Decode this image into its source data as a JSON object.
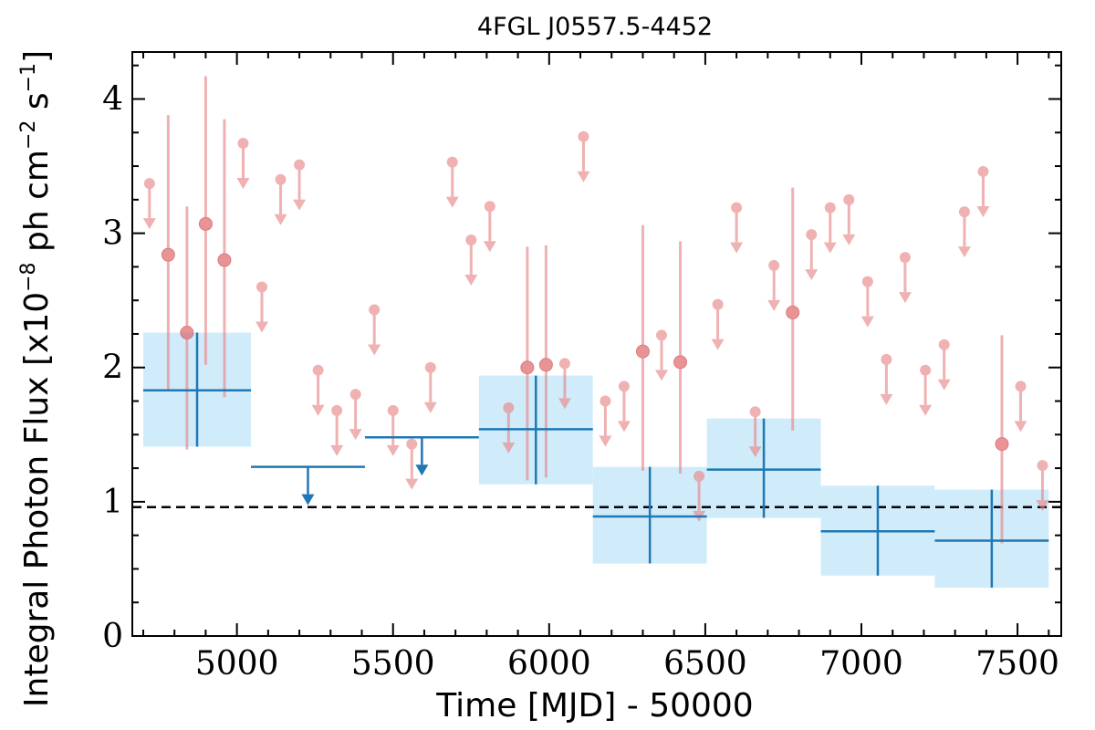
{
  "chart_data": {
    "type": "scatter",
    "title": "4FGL J0557.5-4452",
    "xlabel": "Time [MJD] - 50000",
    "ylabel_main": "Integral Photon Flux [x10",
    "ylabel_exp1": "−8",
    "ylabel_mid": " ph cm",
    "ylabel_exp2": "−2",
    "ylabel_mid2": " s",
    "ylabel_exp3": "−1",
    "ylabel_end": "]",
    "xlim": [
      4665,
      7640
    ],
    "ylim": [
      0,
      4.35
    ],
    "xticks": [
      5000,
      5500,
      6000,
      6500,
      7000,
      7500
    ],
    "yticks": [
      0,
      1,
      2,
      3,
      4
    ],
    "xtick_labels": [
      "5000",
      "5500",
      "6000",
      "6500",
      "7000",
      "7500"
    ],
    "ytick_labels": [
      "0",
      "1",
      "2",
      "3",
      "4"
    ],
    "reference_level": 0.96,
    "colors": {
      "short_bins": "#e8888a",
      "long_bins": "#1f77b4",
      "long_band": "#d0ecfb",
      "reference": "#000000"
    },
    "long_bins": [
      {
        "x0": 4700,
        "x1": 5045,
        "y": 1.83,
        "ylo": 1.41,
        "yhi": 2.26,
        "limit": false
      },
      {
        "x0": 5045,
        "x1": 5410,
        "y": 1.26,
        "limit": true
      },
      {
        "x0": 5410,
        "x1": 5775,
        "y": 1.48,
        "limit": true
      },
      {
        "x0": 5775,
        "x1": 6140,
        "y": 1.54,
        "ylo": 1.13,
        "yhi": 1.94,
        "limit": false
      },
      {
        "x0": 6140,
        "x1": 6505,
        "y": 0.89,
        "ylo": 0.54,
        "yhi": 1.26,
        "limit": false
      },
      {
        "x0": 6505,
        "x1": 6870,
        "y": 1.24,
        "ylo": 0.88,
        "yhi": 1.62,
        "limit": false
      },
      {
        "x0": 6870,
        "x1": 7235,
        "y": 0.78,
        "ylo": 0.45,
        "yhi": 1.12,
        "limit": false
      },
      {
        "x0": 7235,
        "x1": 7600,
        "y": 0.71,
        "ylo": 0.36,
        "yhi": 1.09,
        "limit": false
      }
    ],
    "short_bins": [
      {
        "x": 4720,
        "y": 3.37,
        "limit": true
      },
      {
        "x": 4780,
        "y": 2.84,
        "ylo": 1.83,
        "yhi": 3.88,
        "limit": false
      },
      {
        "x": 4840,
        "y": 2.26,
        "ylo": 1.39,
        "yhi": 3.2,
        "limit": false
      },
      {
        "x": 4900,
        "y": 3.07,
        "ylo": 2.02,
        "yhi": 4.17,
        "limit": false
      },
      {
        "x": 4960,
        "y": 2.8,
        "ylo": 1.78,
        "yhi": 3.85,
        "limit": false
      },
      {
        "x": 5020,
        "y": 3.67,
        "limit": true
      },
      {
        "x": 5080,
        "y": 2.6,
        "limit": true
      },
      {
        "x": 5140,
        "y": 3.4,
        "limit": true
      },
      {
        "x": 5200,
        "y": 3.51,
        "limit": true
      },
      {
        "x": 5260,
        "y": 1.98,
        "limit": true
      },
      {
        "x": 5320,
        "y": 1.68,
        "limit": true
      },
      {
        "x": 5380,
        "y": 1.8,
        "limit": true
      },
      {
        "x": 5440,
        "y": 2.43,
        "limit": true
      },
      {
        "x": 5500,
        "y": 1.68,
        "limit": true
      },
      {
        "x": 5560,
        "y": 1.43,
        "limit": true
      },
      {
        "x": 5620,
        "y": 2.0,
        "limit": true
      },
      {
        "x": 5690,
        "y": 3.53,
        "limit": true
      },
      {
        "x": 5750,
        "y": 2.95,
        "limit": true
      },
      {
        "x": 5810,
        "y": 3.2,
        "limit": true
      },
      {
        "x": 5870,
        "y": 1.7,
        "limit": true
      },
      {
        "x": 5930,
        "y": 2.0,
        "ylo": 1.16,
        "yhi": 2.9,
        "limit": false
      },
      {
        "x": 5990,
        "y": 2.02,
        "ylo": 1.18,
        "yhi": 2.91,
        "limit": false
      },
      {
        "x": 6050,
        "y": 2.03,
        "limit": true
      },
      {
        "x": 6110,
        "y": 3.72,
        "limit": true
      },
      {
        "x": 6180,
        "y": 1.75,
        "limit": true
      },
      {
        "x": 6240,
        "y": 1.86,
        "limit": true
      },
      {
        "x": 6300,
        "y": 2.12,
        "ylo": 1.23,
        "yhi": 3.06,
        "limit": false
      },
      {
        "x": 6360,
        "y": 2.24,
        "limit": true
      },
      {
        "x": 6420,
        "y": 2.04,
        "ylo": 1.21,
        "yhi": 2.94,
        "limit": false
      },
      {
        "x": 6480,
        "y": 1.19,
        "limit": true
      },
      {
        "x": 6540,
        "y": 2.47,
        "limit": true
      },
      {
        "x": 6600,
        "y": 3.19,
        "limit": true
      },
      {
        "x": 6660,
        "y": 1.67,
        "limit": true
      },
      {
        "x": 6720,
        "y": 2.76,
        "limit": true
      },
      {
        "x": 6780,
        "y": 2.41,
        "ylo": 1.53,
        "yhi": 3.34,
        "limit": false
      },
      {
        "x": 6840,
        "y": 2.99,
        "limit": true
      },
      {
        "x": 6900,
        "y": 3.19,
        "limit": true
      },
      {
        "x": 6960,
        "y": 3.25,
        "limit": true
      },
      {
        "x": 7020,
        "y": 2.64,
        "limit": true
      },
      {
        "x": 7080,
        "y": 2.06,
        "limit": true
      },
      {
        "x": 7140,
        "y": 2.82,
        "limit": true
      },
      {
        "x": 7205,
        "y": 1.98,
        "limit": true
      },
      {
        "x": 7265,
        "y": 2.17,
        "limit": true
      },
      {
        "x": 7330,
        "y": 3.16,
        "limit": true
      },
      {
        "x": 7390,
        "y": 3.46,
        "limit": true
      },
      {
        "x": 7450,
        "y": 1.43,
        "ylo": 0.69,
        "yhi": 2.24,
        "limit": false
      },
      {
        "x": 7510,
        "y": 1.86,
        "limit": true
      },
      {
        "x": 7580,
        "y": 1.27,
        "limit": true
      }
    ]
  }
}
